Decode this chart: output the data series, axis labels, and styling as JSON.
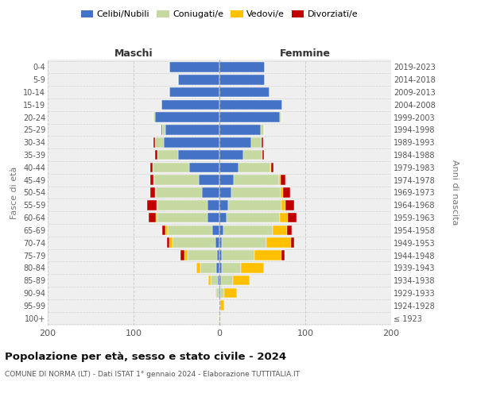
{
  "age_groups": [
    "100+",
    "95-99",
    "90-94",
    "85-89",
    "80-84",
    "75-79",
    "70-74",
    "65-69",
    "60-64",
    "55-59",
    "50-54",
    "45-49",
    "40-44",
    "35-39",
    "30-34",
    "25-29",
    "20-24",
    "15-19",
    "10-14",
    "5-9",
    "0-4"
  ],
  "birth_years": [
    "≤ 1923",
    "1924-1928",
    "1929-1933",
    "1934-1938",
    "1939-1943",
    "1944-1948",
    "1949-1953",
    "1954-1958",
    "1959-1963",
    "1964-1968",
    "1969-1973",
    "1974-1978",
    "1979-1983",
    "1984-1988",
    "1989-1993",
    "1994-1998",
    "1999-2003",
    "2004-2008",
    "2009-2013",
    "2014-2018",
    "2019-2023"
  ],
  "colors": {
    "celibe": "#4472c4",
    "coniugato": "#c5d9a0",
    "vedovo": "#ffc000",
    "divorziato": "#c00000"
  },
  "maschi": {
    "celibe": [
      0,
      0,
      1,
      2,
      4,
      3,
      5,
      8,
      14,
      14,
      20,
      24,
      35,
      48,
      65,
      63,
      75,
      68,
      58,
      48,
      58
    ],
    "coniugato": [
      0,
      1,
      3,
      8,
      18,
      34,
      50,
      52,
      58,
      58,
      54,
      52,
      43,
      24,
      10,
      4,
      2,
      0,
      0,
      0,
      0
    ],
    "vedovo": [
      0,
      0,
      1,
      3,
      5,
      4,
      3,
      3,
      2,
      1,
      1,
      1,
      0,
      0,
      0,
      0,
      0,
      0,
      0,
      0,
      0
    ],
    "divorziato": [
      0,
      0,
      0,
      0,
      0,
      4,
      3,
      4,
      8,
      11,
      6,
      4,
      3,
      3,
      2,
      1,
      0,
      0,
      0,
      0,
      0
    ]
  },
  "femmine": {
    "nubile": [
      0,
      0,
      1,
      2,
      3,
      3,
      3,
      5,
      8,
      10,
      14,
      17,
      22,
      28,
      37,
      48,
      70,
      73,
      58,
      53,
      53
    ],
    "coniugata": [
      0,
      1,
      5,
      14,
      22,
      38,
      52,
      57,
      62,
      62,
      57,
      52,
      37,
      22,
      12,
      4,
      2,
      0,
      0,
      0,
      0
    ],
    "vedova": [
      1,
      5,
      14,
      19,
      27,
      31,
      28,
      17,
      10,
      5,
      3,
      2,
      1,
      0,
      0,
      0,
      0,
      0,
      0,
      0,
      0
    ],
    "divorziata": [
      0,
      0,
      0,
      0,
      0,
      4,
      4,
      5,
      10,
      10,
      8,
      6,
      3,
      2,
      2,
      0,
      0,
      0,
      0,
      0,
      0
    ]
  },
  "xlim": 200,
  "title": "Popolazione per età, sesso e stato civile - 2024",
  "subtitle": "COMUNE DI NORMA (LT) - Dati ISTAT 1° gennaio 2024 - Elaborazione TUTTITALIA.IT",
  "ylabel_left": "Fasce di età",
  "ylabel_right": "Anni di nascita",
  "xlabel_left": "Maschi",
  "xlabel_right": "Femmine",
  "bg_color": "#ffffff",
  "axes_bg": "#efefef",
  "grid_color": "#cccccc"
}
